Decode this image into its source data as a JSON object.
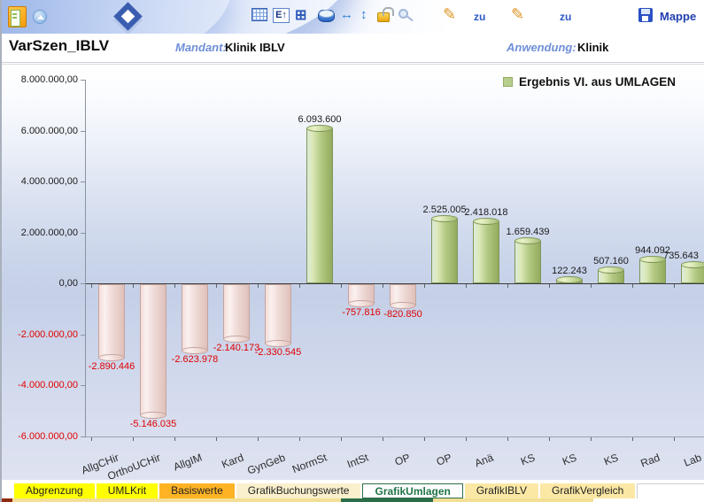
{
  "banner": {
    "toolbar": {
      "zu_1": "zu",
      "zu_2": "zu",
      "mappe_label": "Mappe"
    },
    "icon_glyphs": {
      "h_arrows": "↔",
      "v_arrows": "↕",
      "pencil_1": "✎",
      "pencil_2": "✎",
      "table_e": "E↑",
      "pivot": "⊞"
    }
  },
  "header": {
    "title": "VarSzen_IBLV",
    "mandant_label": "Mandant:",
    "mandant_value": "Klinik IBLV",
    "anwendung_label": "Anwendung:",
    "anwendung_value": "Klinik"
  },
  "chart_data": {
    "type": "bar",
    "legend": {
      "label": "Ergebnis VI. aus UMLAGEN",
      "swatch_color": "#b7cd8c",
      "position": "top-right"
    },
    "categories": [
      "AllgCHir",
      "OrthoUCHir",
      "AllgIM",
      "Kard",
      "GynGeb",
      "NormSt",
      "IntSt",
      "OP",
      "OP",
      "Anä",
      "KS",
      "KS",
      "KS",
      "Rad",
      "Lab"
    ],
    "values": [
      -2890446,
      -5146035,
      -2623978,
      -2140173,
      -2330545,
      6093600,
      -757816,
      -820850,
      2525005,
      2418018,
      1659439,
      122243,
      507160,
      944092,
      735643
    ],
    "value_labels": [
      "-2.890.446",
      "-5.146.035",
      "-2.623.978",
      "-2.140.173",
      "-2.330.545",
      "6.093.600",
      "-757.816",
      "-820.850",
      "2.525.005",
      "2.418.018",
      "1.659.439",
      "122.243",
      "507.160",
      "944.092",
      "735.643"
    ],
    "y_axis": {
      "min": -6000000,
      "max": 8000000,
      "ticks": [
        {
          "label": "8.000.000,00",
          "value": 8000000
        },
        {
          "label": "6.000.000,00",
          "value": 6000000
        },
        {
          "label": "4.000.000,00",
          "value": 4000000
        },
        {
          "label": "2.000.000,00",
          "value": 2000000
        },
        {
          "label": "0,00",
          "value": 0
        },
        {
          "label": "-2.000.000,00",
          "value": -2000000
        },
        {
          "label": "-4.000.000,00",
          "value": -4000000
        },
        {
          "label": "-6.000.000,00",
          "value": -6000000
        }
      ]
    },
    "grid": false,
    "colors": {
      "positive_bar": "#b3c983",
      "negative_bar": "#f3dcd8",
      "positive_label": "#1a1a1a",
      "negative_label": "#e00000"
    }
  },
  "tabs": {
    "items": [
      {
        "label": "Abgrenzung",
        "bg": "#ffff00",
        "fg": "#222222",
        "active": false
      },
      {
        "label": "UMLKrit",
        "bg": "#ffff00",
        "fg": "#222222",
        "active": false
      },
      {
        "label": "Basiswerte",
        "bg": "#feb324",
        "fg": "#222222",
        "active": false
      },
      {
        "label": "GrafikBuchungswerte",
        "bg": "#faf0cd",
        "fg": "#222222",
        "active": false
      },
      {
        "label": "GrafikUmlagen",
        "bg": "#ffffff",
        "fg": "#217346",
        "active": true
      },
      {
        "label": "GrafikIBLV",
        "bg": "#fbe8a5",
        "fg": "#222222",
        "active": false
      },
      {
        "label": "GrafikVergleich",
        "bg": "#fbe8a5",
        "fg": "#222222",
        "active": false
      }
    ]
  }
}
